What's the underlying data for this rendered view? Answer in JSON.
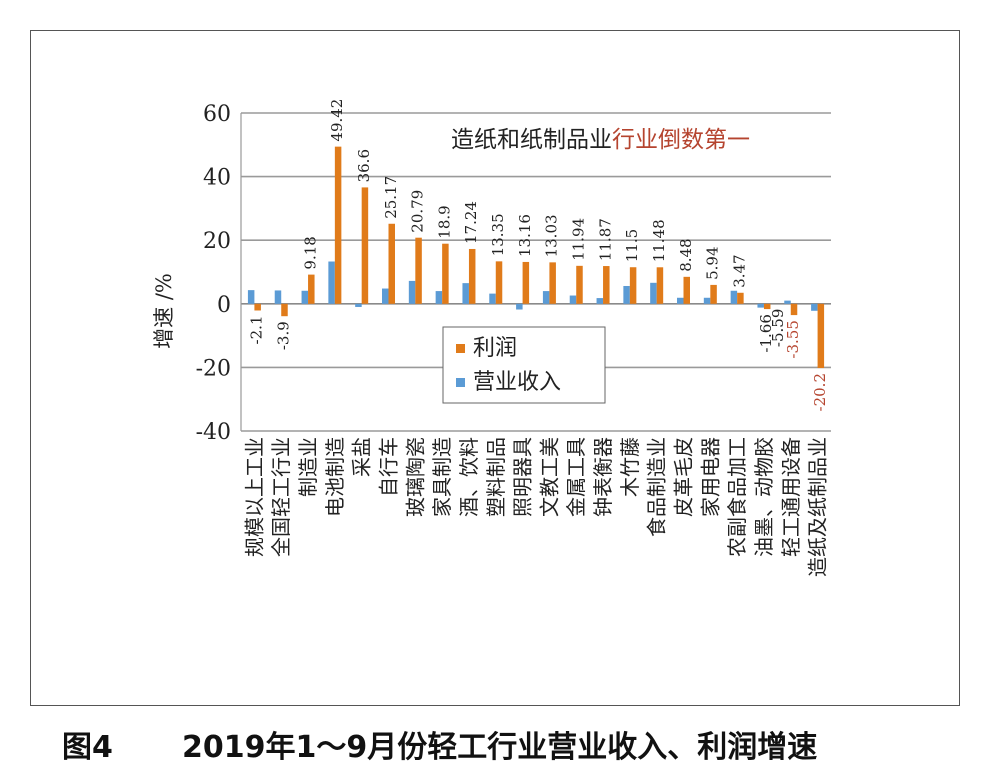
{
  "chart_data": {
    "type": "bar",
    "ylabel": "增速 /%",
    "ylim": [
      -40,
      60
    ],
    "yticks": [
      60,
      40,
      20,
      0,
      -20,
      -40
    ],
    "grid": true,
    "legend_position": "center",
    "annotation": {
      "part1": "造纸和纸制品业",
      "part2": "行业倒数第一",
      "part2_color": "#b5442f"
    },
    "categories": [
      "规模以上工业",
      "全国轻工行业",
      "制造业",
      "电池制造",
      "采盐",
      "自行车",
      "玻璃陶瓷",
      "家具制造",
      "酒、饮料",
      "塑料制品",
      "照明器具",
      "文教工美",
      "金属工具",
      "钟表衡器",
      "木竹藤",
      "食品制造业",
      "皮革毛皮",
      "家用电器",
      "农副食品加工",
      "油墨、动物胶",
      "轻工通用设备",
      "造纸及纸制品业"
    ],
    "series": [
      {
        "name": "利润",
        "color": "#e07b1a",
        "values": [
          -2.1,
          -3.9,
          9.18,
          49.42,
          36.6,
          25.17,
          20.79,
          18.9,
          17.24,
          13.35,
          13.16,
          13.03,
          11.94,
          11.87,
          11.5,
          11.48,
          8.48,
          5.94,
          3.47,
          -1.66,
          -3.55,
          -20.2
        ],
        "labels": [
          "-2.1",
          "-3.9",
          "9.18",
          "49.42",
          "36.6",
          "25.17",
          "20.79",
          "18.9",
          "17.24",
          "13.35",
          "13.16",
          "13.03",
          "11.94",
          "11.87",
          "11.5",
          "11.48",
          "8.48",
          "5.94",
          "3.47",
          "-1.66",
          "-3.55",
          "-20.2"
        ]
      },
      {
        "name": "营业收入",
        "color": "#5b9bd5",
        "values": [
          4.3,
          4.2,
          4.1,
          13.3,
          -1.0,
          4.8,
          7.2,
          4.0,
          6.5,
          3.2,
          -1.8,
          4.0,
          2.6,
          1.8,
          5.6,
          6.6,
          1.9,
          1.9,
          4.1,
          -1.2,
          1.0,
          -2.2
        ]
      }
    ],
    "label_colors": {
      "-20.2": "#b5442f",
      "-3.55": "#b5442f"
    },
    "overflow_label": "-5.59"
  },
  "caption": {
    "label": "图4",
    "text": "2019年1～9月份轻工行业营业收入、利润增速"
  }
}
